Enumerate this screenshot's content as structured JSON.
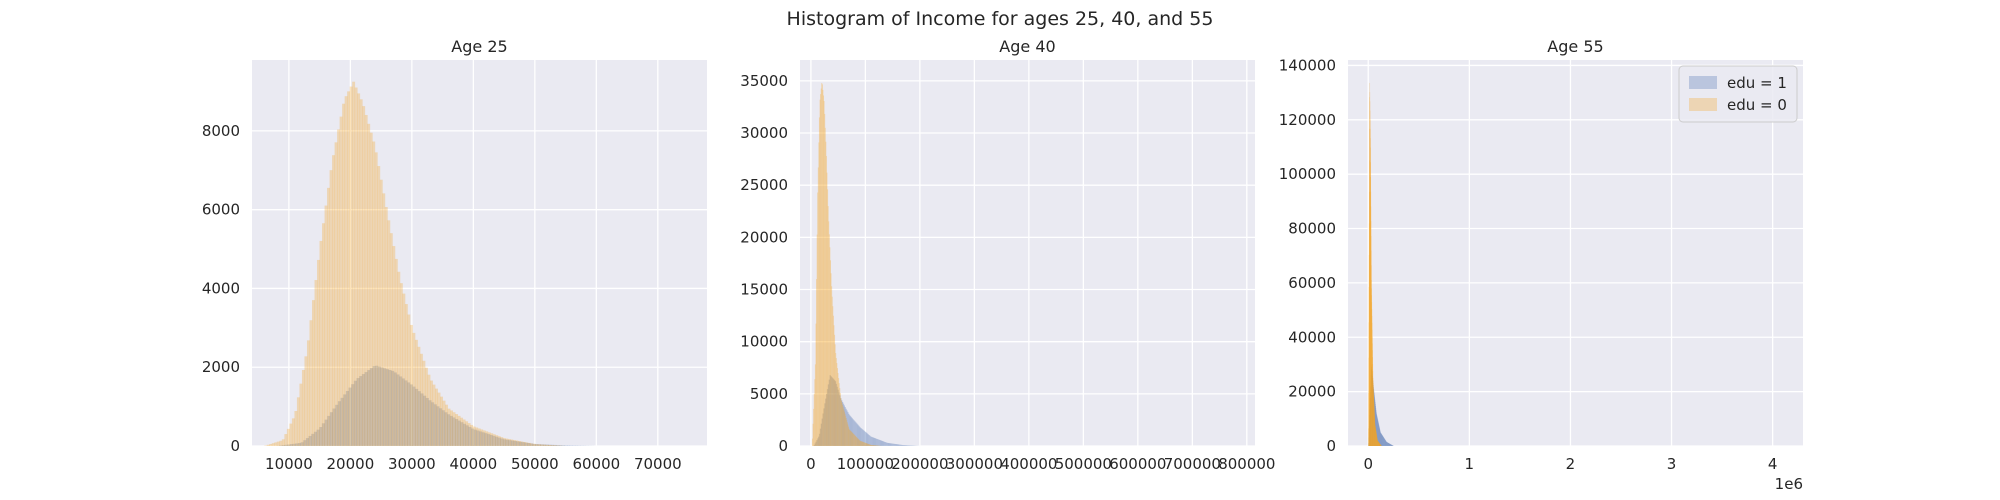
{
  "title": "Histogram of Income for ages 25, 40, and 55",
  "colors": {
    "edu1": "#4c72b0",
    "edu0": "#f5a623",
    "axes_bg": "#eaeaf2",
    "grid": "#ffffff"
  },
  "chart_data": [
    {
      "type": "histogram",
      "title": "Age 25",
      "xlim": [
        4000,
        78000
      ],
      "ylim": [
        0,
        9800
      ],
      "xticks": [
        10000,
        20000,
        30000,
        40000,
        50000,
        60000,
        70000
      ],
      "xtick_labels": [
        "10000",
        "20000",
        "30000",
        "40000",
        "50000",
        "60000",
        "70000"
      ],
      "yticks": [
        0,
        2000,
        4000,
        6000,
        8000
      ],
      "ytick_labels": [
        "0",
        "2000",
        "4000",
        "6000",
        "8000"
      ],
      "grid": true,
      "series": [
        {
          "name": "edu = 1",
          "x": [
            8000,
            12000,
            15000,
            18000,
            21000,
            24000,
            27000,
            30000,
            33000,
            36000,
            40000,
            45000,
            50000,
            55000,
            60000
          ],
          "y": [
            0,
            80,
            450,
            1100,
            1700,
            2050,
            1900,
            1550,
            1150,
            800,
            430,
            170,
            50,
            15,
            0
          ]
        },
        {
          "name": "edu = 0",
          "x": [
            6000,
            9000,
            11000,
            13000,
            15000,
            17000,
            19000,
            20500,
            22000,
            24000,
            26000,
            28000,
            30000,
            33000,
            36000,
            40000,
            45000,
            50000,
            55000
          ],
          "y": [
            0,
            150,
            800,
            2500,
            5000,
            7200,
            8800,
            9250,
            8700,
            7600,
            5900,
            4300,
            3000,
            1700,
            950,
            500,
            200,
            50,
            0
          ]
        }
      ]
    },
    {
      "type": "histogram",
      "title": "Age 40",
      "xlim": [
        -20000,
        815000
      ],
      "ylim": [
        0,
        37000
      ],
      "xticks": [
        0,
        100000,
        200000,
        300000,
        400000,
        500000,
        600000,
        700000,
        800000
      ],
      "xtick_labels": [
        "0",
        "100000",
        "200000",
        "300000",
        "400000",
        "500000",
        "600000",
        "700000",
        "800000"
      ],
      "yticks": [
        0,
        5000,
        10000,
        15000,
        20000,
        25000,
        30000,
        35000
      ],
      "ytick_labels": [
        "0",
        "5000",
        "10000",
        "15000",
        "20000",
        "25000",
        "30000",
        "35000"
      ],
      "grid": true,
      "series": [
        {
          "name": "edu = 1",
          "x": [
            5000,
            15000,
            25000,
            35000,
            45000,
            55000,
            70000,
            90000,
            110000,
            140000,
            170000,
            200000
          ],
          "y": [
            0,
            1000,
            4000,
            6800,
            6200,
            4500,
            3000,
            1800,
            900,
            300,
            80,
            0
          ]
        },
        {
          "name": "edu = 0",
          "x": [
            2000,
            8000,
            12000,
            16000,
            20000,
            24000,
            28000,
            32000,
            38000,
            45000,
            55000,
            70000,
            90000,
            110000,
            130000
          ],
          "y": [
            0,
            8000,
            24000,
            33000,
            35000,
            33000,
            28000,
            22000,
            15000,
            9000,
            4500,
            1600,
            500,
            100,
            0
          ]
        }
      ]
    },
    {
      "type": "histogram",
      "title": "Age 55",
      "xlim": [
        -200000,
        4300000
      ],
      "ylim": [
        0,
        142000
      ],
      "xticks": [
        0,
        1000000,
        2000000,
        3000000,
        4000000
      ],
      "xtick_labels": [
        "0",
        "1",
        "2",
        "3",
        "4"
      ],
      "xscale_label": "1e6",
      "yticks": [
        0,
        20000,
        40000,
        60000,
        80000,
        100000,
        120000,
        140000
      ],
      "ytick_labels": [
        "0",
        "20000",
        "40000",
        "60000",
        "80000",
        "100000",
        "120000",
        "140000"
      ],
      "grid": true,
      "legend": {
        "placement": "top-right",
        "entries": [
          "edu = 1",
          "edu = 0"
        ]
      },
      "series": [
        {
          "name": "edu = 1",
          "x": [
            0,
            10000,
            30000,
            50000,
            80000,
            120000,
            180000,
            250000
          ],
          "y": [
            0,
            10000,
            30000,
            22000,
            12000,
            5000,
            1500,
            0
          ]
        },
        {
          "name": "edu = 0",
          "x": [
            0,
            5000,
            12000,
            20000,
            30000,
            45000,
            65000,
            90000,
            130000
          ],
          "y": [
            0,
            60000,
            135000,
            110000,
            60000,
            25000,
            8000,
            2000,
            0
          ]
        }
      ]
    }
  ]
}
